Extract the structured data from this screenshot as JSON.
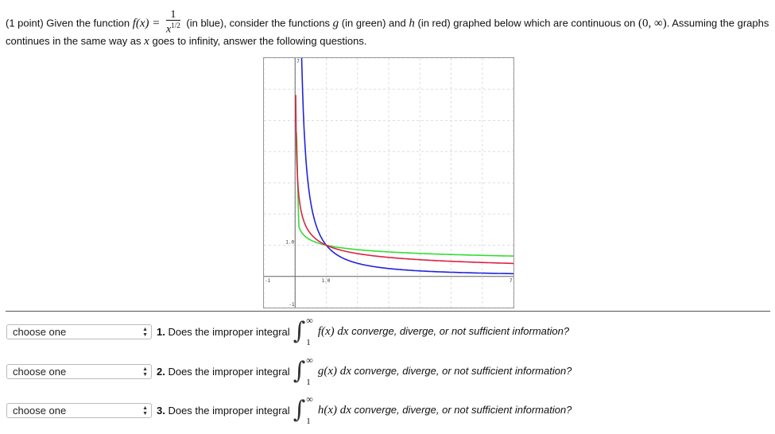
{
  "intro": {
    "points": "(1 point) Given the function",
    "fx": "f(x) =",
    "num": "1",
    "den": "x",
    "den_exp": "1/2",
    "after": "(in blue), consider the functions",
    "g": "g",
    "g_color": "(in green) and",
    "h": "h",
    "h_color": "(in red) graphed below which are continuous on",
    "interval": "(0, ∞)",
    "assume": ". Assuming the graphs",
    "line2a": "continues in the same way as",
    "x": "x",
    "line2b": "goes to infinity, answer the following questions."
  },
  "chart_data": {
    "type": "line",
    "xlim": [
      -1,
      7
    ],
    "ylim": [
      -1,
      7
    ],
    "grid": true,
    "tick_labels": {
      "x": [
        "-1",
        "1.0",
        "7"
      ],
      "y": [
        "-1",
        "1.0",
        "7"
      ]
    },
    "series": [
      {
        "color": "#2222dd",
        "label": "f"
      },
      {
        "color": "#33dd33",
        "label": "g"
      },
      {
        "color": "#dd2244",
        "label": "h"
      }
    ]
  },
  "questions": [
    {
      "select": "choose one",
      "label": "1. Does the improper integral",
      "upper": "∞",
      "lower": "1",
      "fn": "f(x) dx",
      "tail": "converge, diverge, or not sufficient information?"
    },
    {
      "select": "choose one",
      "label": "2. Does the improper integral",
      "upper": "∞",
      "lower": "1",
      "fn": "g(x) dx",
      "tail": "converge, diverge, or not sufficient information?"
    },
    {
      "select": "choose one",
      "label": "3. Does the improper integral",
      "upper": "∞",
      "lower": "1",
      "fn": "h(x) dx",
      "tail": "converge, diverge, or not sufficient information?"
    }
  ]
}
